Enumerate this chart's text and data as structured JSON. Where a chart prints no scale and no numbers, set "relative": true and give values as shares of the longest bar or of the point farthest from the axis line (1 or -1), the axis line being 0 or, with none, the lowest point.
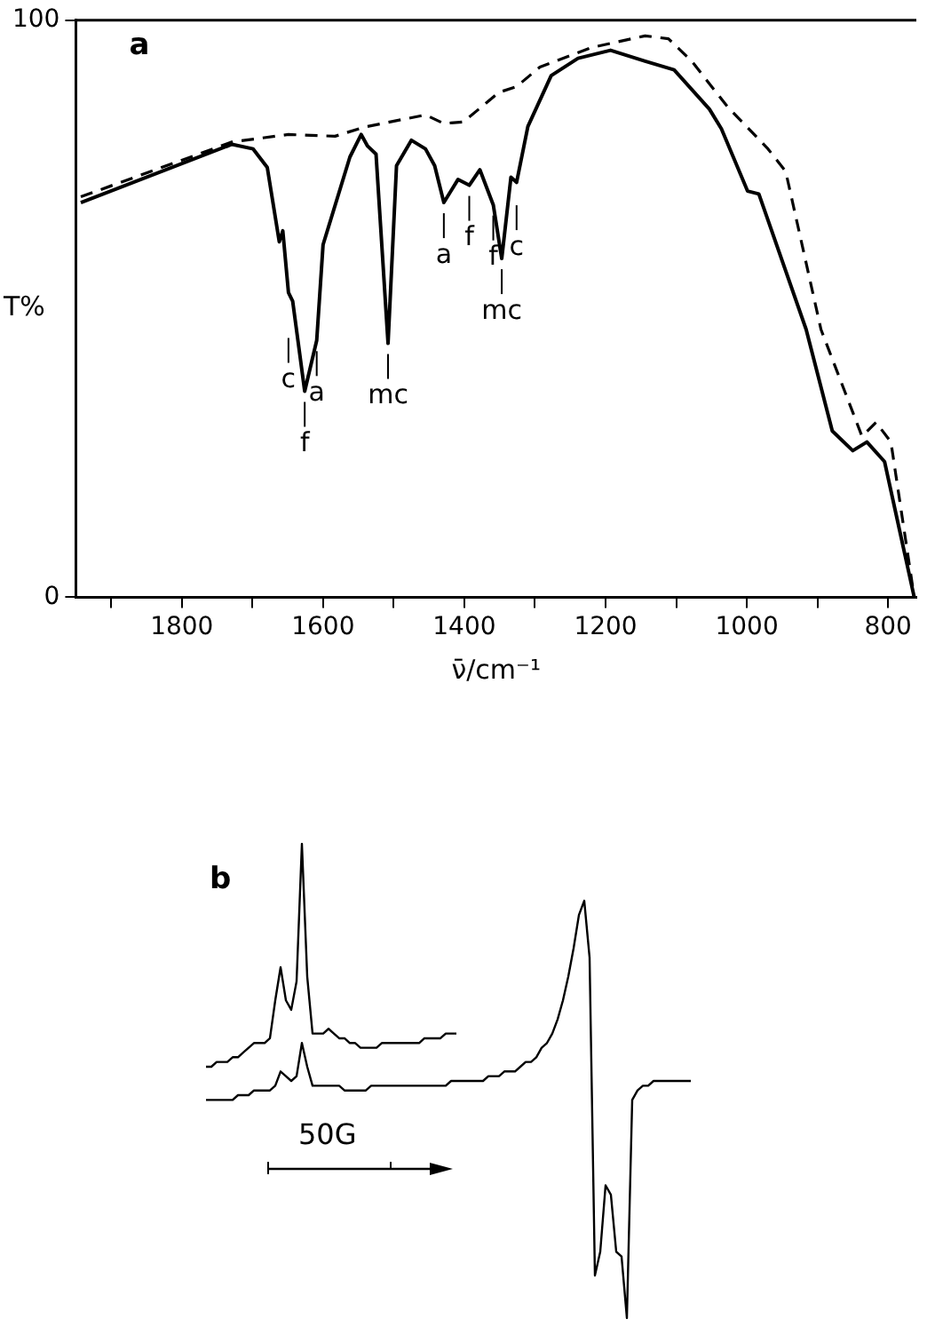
{
  "chart_data": [
    {
      "type": "line",
      "title": "a",
      "xlabel": "ν̄/cm⁻¹",
      "ylabel": "T%",
      "xlim": [
        1950,
        760
      ],
      "ylim": [
        0,
        100
      ],
      "xticks": [
        {
          "value": 1900,
          "label": null
        },
        1800,
        {
          "value": 1700,
          "label": null
        },
        1600,
        {
          "value": 1500,
          "label": null
        },
        1400,
        {
          "value": 1300,
          "label": null
        },
        1200,
        {
          "value": 1100,
          "label": null
        },
        1000,
        {
          "value": 900,
          "label": null
        },
        800
      ],
      "yticks": [
        0,
        100
      ],
      "marker": "none",
      "series": [
        {
          "color": "#000000",
          "line_style": "solid",
          "x": [
            1943,
            1729,
            1699,
            1679,
            1662,
            1657,
            1649,
            1643,
            1626,
            1609,
            1600,
            1562,
            1546,
            1537,
            1525,
            1508,
            1496,
            1475,
            1455,
            1442,
            1429,
            1409,
            1393,
            1378,
            1359,
            1347,
            1334,
            1326,
            1310,
            1277,
            1239,
            1193,
            1144,
            1103,
            1053,
            1036,
            999,
            983,
            916,
            879,
            850,
            830,
            805,
            763
          ],
          "values": [
            68.4,
            78.5,
            77.7,
            74.5,
            61.6,
            63.5,
            52.8,
            51.3,
            35.7,
            44.5,
            61.1,
            76.3,
            80.2,
            78.2,
            76.8,
            44,
            74.8,
            79.2,
            77.7,
            74.8,
            68.4,
            72.4,
            71.4,
            74.1,
            68,
            58.7,
            72.8,
            71.9,
            81.6,
            90.4,
            93.4,
            94.8,
            92.9,
            91.4,
            84.6,
            81.2,
            70.4,
            69.9,
            46.4,
            28.8,
            25.4,
            26.9,
            23.5,
            0
          ]
        },
        {
          "color": "#000000",
          "line_style": "dashed",
          "x": [
            1943,
            1729,
            1649,
            1583,
            1541,
            1455,
            1429,
            1401,
            1351,
            1326,
            1293,
            1219,
            1144,
            1111,
            1078,
            1028,
            970,
            945,
            895,
            837,
            817,
            796,
            763
          ],
          "values": [
            69.4,
            78.9,
            80.2,
            79.9,
            81.5,
            83.6,
            82.1,
            82.4,
            87.5,
            88.5,
            91.9,
            95.3,
            97.3,
            96.8,
            92.9,
            85.1,
            77.7,
            73.8,
            46.4,
            27.9,
            30.3,
            26.9,
            0
          ]
        }
      ],
      "annotations": [
        {
          "text": "c",
          "x": 1649,
          "y": 52.8
        },
        {
          "text": "f",
          "x": 1626,
          "y": 35.7
        },
        {
          "text": "a",
          "x": 1609,
          "y": 44.5
        },
        {
          "text": "mc",
          "x": 1508,
          "y": 44
        },
        {
          "text": "a",
          "x": 1429,
          "y": 68.4
        },
        {
          "text": "f",
          "x": 1393,
          "y": 71.4
        },
        {
          "text": "f",
          "x": 1359,
          "y": 68
        },
        {
          "text": "mc",
          "x": 1347,
          "y": 58.7
        },
        {
          "text": "c",
          "x": 1326,
          "y": 71.9
        }
      ]
    },
    {
      "type": "line",
      "title": "b",
      "relative": true,
      "tick_labels": false,
      "marker": "none",
      "categories": [
        null,
        null,
        null,
        null,
        null,
        null,
        null,
        null,
        null,
        null,
        null,
        null,
        null,
        null,
        null,
        null,
        null,
        null,
        null,
        null,
        null,
        null,
        null,
        null,
        null,
        null,
        null,
        null,
        null,
        null,
        null,
        null,
        null,
        null,
        null,
        null,
        null,
        null,
        null,
        null,
        null,
        null,
        null,
        null,
        null,
        null,
        null,
        null,
        null,
        null,
        null,
        null,
        null,
        null,
        null,
        null,
        null,
        null,
        null,
        null,
        null,
        null,
        null,
        null,
        null,
        null,
        null,
        null,
        null,
        null,
        null,
        null,
        null,
        null,
        null,
        null,
        null,
        null,
        null,
        null,
        null,
        null,
        null,
        null,
        null,
        null,
        null,
        null,
        null,
        null,
        null,
        null
      ],
      "series": [
        {
          "color": "#000000",
          "values": [
            0.53,
            0.53,
            0.54,
            0.54,
            0.54,
            0.55,
            0.55,
            0.56,
            0.57,
            0.58,
            0.58,
            0.58,
            0.59,
            0.67,
            0.74,
            0.67,
            0.65,
            0.71,
            1,
            0.72,
            0.6,
            0.6,
            0.6,
            0.61,
            0.6,
            0.59,
            0.59,
            0.58,
            0.58,
            0.57,
            0.57,
            0.57,
            0.57,
            0.58,
            0.58,
            0.58,
            0.58,
            0.58,
            0.58,
            0.58,
            0.58,
            0.59,
            0.59,
            0.59,
            0.59,
            0.6,
            0.6,
            0.6,
            null,
            null,
            null,
            null,
            null,
            null,
            null,
            null,
            null,
            null,
            null,
            null,
            null,
            null,
            null,
            null,
            null,
            null,
            null,
            null,
            null,
            null,
            null,
            null,
            null,
            null,
            null,
            null,
            null,
            null,
            null,
            null,
            null,
            null,
            null,
            null,
            null,
            null,
            null,
            null,
            null,
            null,
            null,
            null
          ]
        },
        {
          "color": "#000000",
          "values": [
            0.46,
            0.46,
            0.46,
            0.46,
            0.46,
            0.46,
            0.47,
            0.47,
            0.47,
            0.48,
            0.48,
            0.48,
            0.48,
            0.49,
            0.52,
            0.51,
            0.5,
            0.51,
            0.58,
            0.53,
            0.49,
            0.49,
            0.49,
            0.49,
            0.49,
            0.49,
            0.48,
            0.48,
            0.48,
            0.48,
            0.48,
            0.49,
            0.49,
            0.49,
            0.49,
            0.49,
            0.49,
            0.49,
            0.49,
            0.49,
            0.49,
            0.49,
            0.49,
            0.49,
            0.49,
            0.49,
            0.5,
            0.5,
            0.5,
            0.5,
            0.5,
            0.5,
            0.5,
            0.51,
            0.51,
            0.51,
            0.52,
            0.52,
            0.52,
            0.53,
            0.54,
            0.54,
            0.55,
            0.57,
            0.58,
            0.6,
            0.63,
            0.67,
            0.72,
            0.78,
            0.85,
            0.88,
            0.76,
            0.09,
            0.14,
            0.28,
            0.26,
            0.14,
            0.13,
            0,
            0.46,
            0.48,
            0.49,
            0.49,
            0.5,
            0.5,
            0.5,
            0.5,
            0.5,
            0.5,
            0.5,
            0.5
          ]
        }
      ],
      "annotations": [
        "50G"
      ]
    }
  ]
}
